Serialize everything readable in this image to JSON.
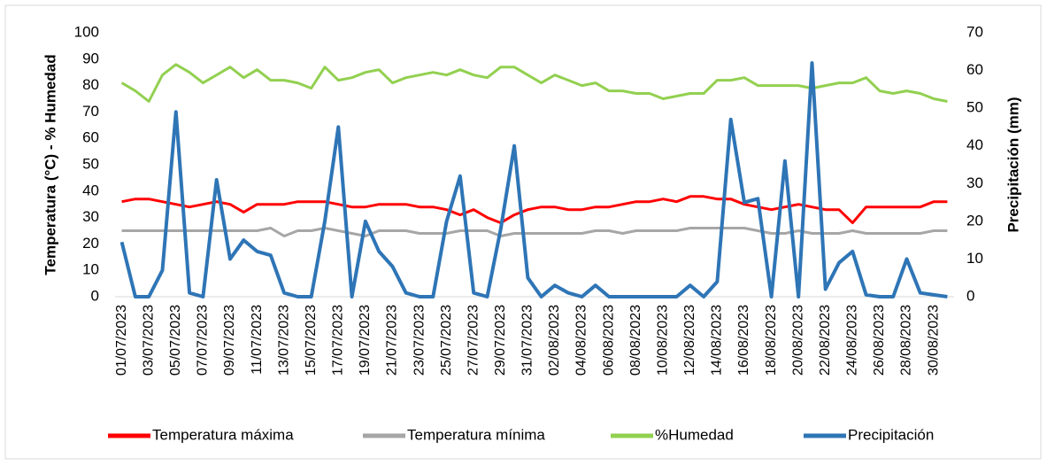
{
  "chart_data": {
    "type": "line",
    "y_label": "Temperatura (°C) - % Humedad",
    "y2_label": "Precipitación (mm)",
    "categories": [
      "01/07/2023",
      null,
      "03/07/2023",
      null,
      "05/07/2023",
      null,
      "07/07/2023",
      null,
      "09/07/2023",
      null,
      "11/07/2023",
      null,
      "13/07/2023",
      null,
      "15/07/2023",
      null,
      "17/07/2023",
      null,
      "19/07/2023",
      null,
      "21/07/2023",
      null,
      "23/07/2023",
      null,
      "25/07/2023",
      null,
      "27/07/2023",
      null,
      "29/07/2023",
      null,
      "31/07/2023",
      null,
      "02/08/2023",
      null,
      "04/08/2023",
      null,
      "06/08/2023",
      null,
      "08/08/2023",
      null,
      "10/08/2023",
      null,
      "12/08/2023",
      null,
      "14/08/2023",
      null,
      "16/08/2023",
      null,
      "18/08/2023",
      null,
      "20/08/2023",
      null,
      "22/08/2023",
      null,
      "24/08/2023",
      null,
      "26/08/2023",
      null,
      "28/08/2023",
      null,
      "30/08/2023",
      null
    ],
    "series": [
      {
        "name": "Temperatura máxima",
        "color": "#ff0000",
        "values": [
          36,
          37,
          37,
          36,
          35,
          34,
          35,
          36,
          35,
          32,
          35,
          35,
          35,
          36,
          36,
          36,
          35,
          34,
          34,
          35,
          35,
          35,
          34,
          34,
          33,
          31,
          33,
          30,
          28,
          31,
          33,
          34,
          34,
          33,
          33,
          34,
          34,
          35,
          36,
          36,
          37,
          36,
          38,
          38,
          37,
          37,
          35,
          34,
          33,
          34,
          35,
          34,
          33,
          33,
          28,
          34,
          34,
          34,
          34,
          34,
          36,
          36
        ]
      },
      {
        "name": "Temperatura mínima",
        "color": "#a6a6a6",
        "values": [
          25,
          25,
          25,
          25,
          25,
          25,
          25,
          25,
          25,
          25,
          25,
          26,
          23,
          25,
          25,
          26,
          25,
          24,
          23,
          25,
          25,
          25,
          24,
          24,
          24,
          25,
          25,
          25,
          23,
          24,
          24,
          24,
          24,
          24,
          24,
          25,
          25,
          24,
          25,
          25,
          25,
          25,
          26,
          26,
          26,
          26,
          26,
          25,
          24,
          24,
          25,
          24,
          24,
          24,
          25,
          24,
          24,
          24,
          24,
          24,
          25,
          25
        ]
      },
      {
        "name": "%Humedad",
        "color": "#92d050",
        "values": [
          81,
          78,
          74,
          84,
          88,
          85,
          81,
          84,
          87,
          83,
          86,
          82,
          82,
          81,
          79,
          87,
          82,
          83,
          85,
          86,
          81,
          83,
          84,
          85,
          84,
          86,
          84,
          83,
          87,
          87,
          84,
          81,
          84,
          82,
          80,
          81,
          78,
          78,
          77,
          77,
          75,
          76,
          77,
          77,
          82,
          82,
          83,
          80,
          80,
          80,
          80,
          79,
          80,
          81,
          81,
          83,
          78,
          77,
          78,
          77,
          75,
          74
        ]
      },
      {
        "name": "Precipitación",
        "color": "#2e75b6",
        "axis": "y2",
        "values": [
          14.5,
          0,
          0,
          7,
          49,
          1,
          0,
          31,
          10,
          15,
          12,
          11,
          1,
          0,
          0,
          20,
          45,
          0,
          20,
          12,
          8,
          1,
          0,
          0,
          20,
          32,
          1,
          0,
          18,
          40,
          5,
          0,
          3,
          1,
          0,
          3,
          0,
          0,
          0,
          0,
          0,
          0,
          3,
          0,
          4,
          47,
          25,
          26,
          0,
          36,
          0,
          62,
          2,
          9,
          12,
          0.5,
          0,
          0,
          10,
          1,
          0.5,
          0
        ]
      }
    ],
    "ylim": [
      0,
      100
    ],
    "yticks": [
      0,
      10,
      20,
      30,
      40,
      50,
      60,
      70,
      80,
      90,
      100
    ],
    "y2lim": [
      0,
      70
    ],
    "y2ticks": [
      0,
      10,
      20,
      30,
      40,
      50,
      60,
      70
    ],
    "legend": "bottom"
  }
}
